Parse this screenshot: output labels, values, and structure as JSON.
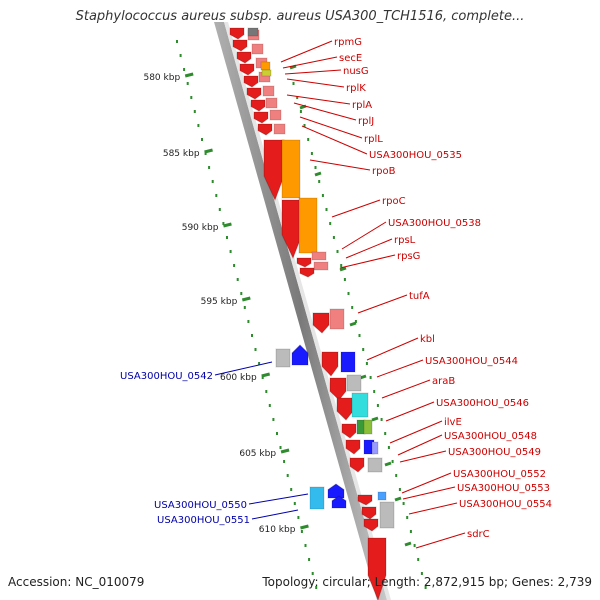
{
  "title": "Staphylococcus aureus subsp. aureus USA300_TCH1516, complete...",
  "footer": {
    "accession": "Accession: NC_010079",
    "summary": "Topology: circular; Length: 2,872,915 bp; Genes: 2,739"
  },
  "scale": {
    "ticks": [
      "580 kbp",
      "585 kbp",
      "590 kbp",
      "595 kbp",
      "600 kbp",
      "605 kbp",
      "610 kbp"
    ]
  },
  "genes_right": [
    "rpmG",
    "secE",
    "nusG",
    "rplK",
    "rplA",
    "rplJ",
    "rplL",
    "USA300HOU_0535",
    "rpoB",
    "rpoC",
    "USA300HOU_0538",
    "rpsL",
    "rpsG",
    "tufA",
    "kbl",
    "USA300HOU_0544",
    "araB",
    "USA300HOU_0546",
    "ilvE",
    "USA300HOU_0548",
    "USA300HOU_0549",
    "USA300HOU_0552",
    "USA300HOU_0553",
    "USA300HOU_0554",
    "sdrC"
  ],
  "genes_left": [
    "USA300HOU_0542",
    "USA300HOU_0550",
    "USA300HOU_0551"
  ],
  "colors": {
    "backbone": "#8a8a8a",
    "tick": "#2e8b2e",
    "label_right": "#cc0000",
    "label_left": "#0000aa",
    "cds_red": "#e51c1c",
    "cds_pink": "#f08080",
    "cds_orange": "#ff9900",
    "cds_blue": "#1a1aff",
    "cds_cyan": "#33dddd",
    "cds_gray": "#bbbbbb"
  }
}
